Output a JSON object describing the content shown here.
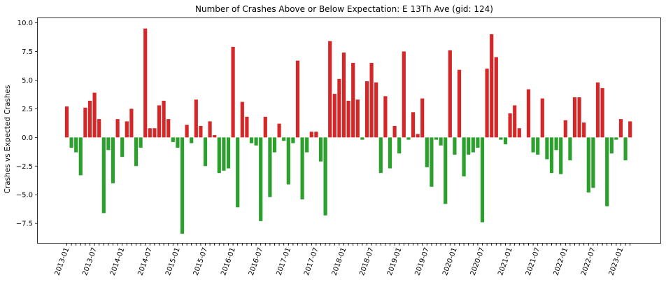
{
  "chart_data": {
    "type": "bar",
    "title": "Number of Crashes Above or Below Expectation: E 13Th Ave (gid: 124)",
    "xlabel": "",
    "ylabel": "Crashes vs Expected Crashes",
    "ylim": [
      -9.2,
      10.4
    ],
    "yticks": [
      -7.5,
      -5.0,
      -2.5,
      0.0,
      2.5,
      5.0,
      7.5,
      10.0
    ],
    "ytick_labels": [
      "−7.5",
      "−5.0",
      "−2.5",
      "0.0",
      "2.5",
      "5.0",
      "7.5",
      "10.0"
    ],
    "grid": false,
    "colors": {
      "positive": "#d62728",
      "negative": "#2ca02c"
    },
    "categories": [
      "2013-01",
      "2013-02",
      "2013-03",
      "2013-04",
      "2013-05",
      "2013-06",
      "2013-07",
      "2013-08",
      "2013-09",
      "2013-10",
      "2013-11",
      "2013-12",
      "2014-01",
      "2014-02",
      "2014-03",
      "2014-04",
      "2014-05",
      "2014-06",
      "2014-07",
      "2014-08",
      "2014-09",
      "2014-10",
      "2014-11",
      "2014-12",
      "2015-01",
      "2015-02",
      "2015-03",
      "2015-04",
      "2015-05",
      "2015-06",
      "2015-07",
      "2015-08",
      "2015-09",
      "2015-10",
      "2015-11",
      "2015-12",
      "2016-01",
      "2016-02",
      "2016-03",
      "2016-04",
      "2016-05",
      "2016-06",
      "2016-07",
      "2016-08",
      "2016-09",
      "2016-10",
      "2016-11",
      "2016-12",
      "2017-01",
      "2017-02",
      "2017-03",
      "2017-04",
      "2017-05",
      "2017-06",
      "2017-07",
      "2017-08",
      "2017-09",
      "2017-10",
      "2017-11",
      "2017-12",
      "2018-01",
      "2018-02",
      "2018-03",
      "2018-04",
      "2018-05",
      "2018-06",
      "2018-07",
      "2018-08",
      "2018-09",
      "2018-10",
      "2018-11",
      "2018-12",
      "2019-01",
      "2019-02",
      "2019-03",
      "2019-04",
      "2019-05",
      "2019-06",
      "2019-07",
      "2019-08",
      "2019-09",
      "2019-10",
      "2019-11",
      "2019-12",
      "2020-01",
      "2020-02",
      "2020-03",
      "2020-04",
      "2020-05",
      "2020-06",
      "2020-07",
      "2020-08",
      "2020-09",
      "2020-10",
      "2020-11",
      "2020-12",
      "2021-01",
      "2021-02",
      "2021-03",
      "2021-04",
      "2021-05",
      "2021-06",
      "2021-07",
      "2021-08",
      "2021-09",
      "2021-10",
      "2021-11",
      "2021-12",
      "2022-01",
      "2022-02",
      "2022-03",
      "2022-04",
      "2022-05",
      "2022-06",
      "2022-07",
      "2022-08",
      "2022-09",
      "2022-10",
      "2022-11",
      "2022-12",
      "2023-01",
      "2023-02",
      "2023-03"
    ],
    "xtick_labels": [
      "2013-01",
      "2013-07",
      "2014-01",
      "2014-07",
      "2015-01",
      "2015-07",
      "2016-01",
      "2016-07",
      "2017-01",
      "2017-07",
      "2018-01",
      "2018-07",
      "2019-01",
      "2019-07",
      "2020-01",
      "2020-07",
      "2021-01",
      "2021-07",
      "2022-01",
      "2022-07",
      "2023-01"
    ],
    "values": [
      2.7,
      -0.9,
      -1.3,
      -3.3,
      2.6,
      3.2,
      3.9,
      1.6,
      -6.6,
      -1.1,
      -4.0,
      1.6,
      -1.7,
      1.4,
      2.5,
      -2.5,
      -0.9,
      9.5,
      0.8,
      0.8,
      2.8,
      3.2,
      1.6,
      -0.4,
      -0.9,
      -8.4,
      1.1,
      -0.5,
      3.3,
      1.0,
      -2.5,
      1.4,
      0.2,
      -3.1,
      -2.9,
      -2.7,
      7.9,
      -6.1,
      3.1,
      1.8,
      -0.5,
      -0.7,
      -7.3,
      1.8,
      -5.2,
      -1.3,
      1.2,
      -0.3,
      -4.1,
      -0.5,
      6.7,
      -5.4,
      -1.3,
      0.5,
      0.5,
      -2.1,
      -6.8,
      8.4,
      3.8,
      5.1,
      7.4,
      3.2,
      6.5,
      3.3,
      -0.2,
      4.9,
      6.5,
      4.8,
      -3.1,
      3.6,
      -2.7,
      1.0,
      -1.4,
      7.5,
      -0.2,
      2.2,
      0.3,
      3.4,
      -2.6,
      -4.3,
      -0.2,
      -0.7,
      -5.8,
      7.6,
      -1.5,
      5.9,
      -3.4,
      -1.5,
      -1.3,
      -0.9,
      -7.4,
      6.0,
      9.0,
      7.0,
      -0.2,
      -0.6,
      2.1,
      2.8,
      0.8,
      0.0,
      4.2,
      -1.3,
      -1.5,
      3.4,
      -1.9,
      -3.1,
      -1.1,
      -3.2,
      1.5,
      -2.0,
      3.5,
      3.5,
      1.3,
      -4.8,
      -4.4,
      4.8,
      4.3,
      -6.0,
      -1.4,
      -0.2,
      1.6,
      -2.0,
      1.4
    ]
  }
}
